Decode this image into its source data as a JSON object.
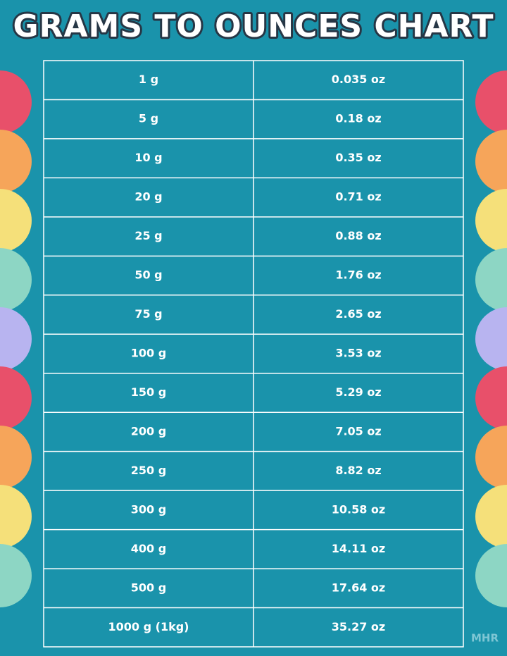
{
  "title": "GRAMS TO OUNCES CHART",
  "table": {
    "rows": [
      [
        "1 g",
        "0.035 oz"
      ],
      [
        "5 g",
        "0.18 oz"
      ],
      [
        "10 g",
        "0.35 oz"
      ],
      [
        "20 g",
        "0.71 oz"
      ],
      [
        "25 g",
        "0.88 oz"
      ],
      [
        "50 g",
        "1.76 oz"
      ],
      [
        "75 g",
        "2.65 oz"
      ],
      [
        "100 g",
        "3.53 oz"
      ],
      [
        "150 g",
        "5.29 oz"
      ],
      [
        "200 g",
        "7.05 oz"
      ],
      [
        "250 g",
        "8.82 oz"
      ],
      [
        "300 g",
        "10.58 oz"
      ],
      [
        "400 g",
        "14.11 oz"
      ],
      [
        "500 g",
        "17.64 oz"
      ],
      [
        "1000 g (1kg)",
        "35.27 oz"
      ]
    ]
  },
  "watermark": "MHR"
}
